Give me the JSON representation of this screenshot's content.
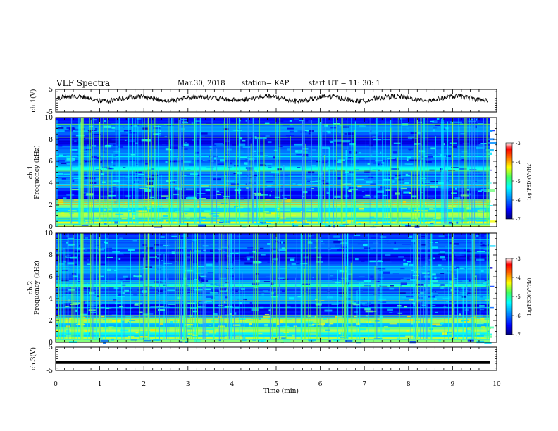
{
  "header": {
    "title": "VLF Spectra",
    "date": "Mar.30, 2018",
    "station": "station= KAP",
    "start": "start  UT =   11: 30: 1"
  },
  "chart_data": [
    {
      "type": "line",
      "panel": "ch1-waveform",
      "ylabel": "ch.1(V)",
      "ylim": [
        -5,
        5
      ],
      "yticks": [
        "5",
        "-5"
      ],
      "xlim": [
        0,
        10
      ],
      "series": [
        {
          "values": "noisy waveform fluctuating around +1 V between 0 and 9.8 min"
        }
      ]
    },
    {
      "type": "heatmap",
      "panel": "ch1-spectrogram",
      "ylabel": "ch.1\nFrequency  (kHz)",
      "ylim": [
        0,
        10
      ],
      "yticks": [
        "0",
        "2",
        "4",
        "6",
        "8",
        "10"
      ],
      "xlim": [
        0,
        10
      ],
      "colorbar": {
        "label": "log(PSD)(V²/Hz)",
        "range": [
          -7,
          -3
        ],
        "ticks": [
          "-3",
          "-4",
          "-5",
          "-6",
          "-7"
        ]
      }
    },
    {
      "type": "heatmap",
      "panel": "ch2-spectrogram",
      "ylabel": "ch.2\nFrequency  (kHz)",
      "ylim": [
        0,
        10
      ],
      "yticks": [
        "0",
        "2",
        "4",
        "6",
        "8",
        "10"
      ],
      "xlim": [
        0,
        10
      ],
      "colorbar": {
        "label": "log(PSD)(V²/Hz)",
        "range": [
          -7,
          -3
        ],
        "ticks": [
          "-3",
          "-4",
          "-5",
          "-6",
          "-7"
        ]
      }
    },
    {
      "type": "line",
      "panel": "ch3-waveform",
      "ylabel": "ch.3(V)",
      "ylim": [
        -5,
        5
      ],
      "yticks": [
        "5",
        "-5"
      ],
      "xlim": [
        0,
        10
      ],
      "series": [
        {
          "values": "flat line near -1.5 V from 0 to 9.8 min"
        }
      ]
    }
  ],
  "xaxis": {
    "label": "Time  (min)",
    "ticks": [
      "0",
      "1",
      "2",
      "3",
      "4",
      "5",
      "6",
      "7",
      "8",
      "9",
      "10"
    ]
  }
}
